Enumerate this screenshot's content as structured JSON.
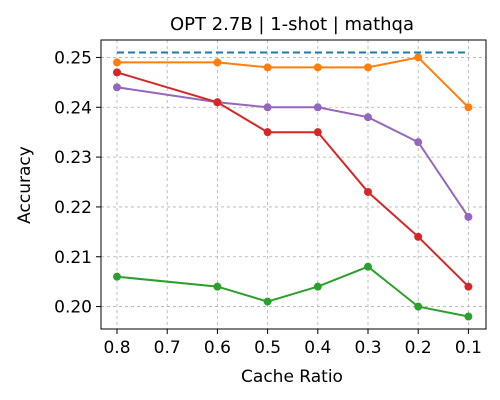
{
  "chart_data": {
    "type": "line",
    "title": "OPT 2.7B | 1-shot | mathqa",
    "xlabel": "Cache Ratio",
    "ylabel": "Accuracy",
    "x_ticks": [
      "0.8",
      "0.7",
      "0.6",
      "0.5",
      "0.4",
      "0.3",
      "0.2",
      "0.1"
    ],
    "y_ticks": [
      "0.20",
      "0.21",
      "0.22",
      "0.23",
      "0.24",
      "0.25"
    ],
    "x_reversed": true,
    "xlim": [
      0.8,
      0.1
    ],
    "ylim": [
      0.1955,
      0.2535
    ],
    "grid": true,
    "baseline": {
      "value": 0.251,
      "color": "#1f77b4",
      "style": "dashed"
    },
    "series": [
      {
        "color": "#ff7f0e",
        "x": [
          0.8,
          0.6,
          0.5,
          0.4,
          0.3,
          0.2,
          0.1
        ],
        "y": [
          0.249,
          0.249,
          0.248,
          0.248,
          0.248,
          0.25,
          0.24
        ]
      },
      {
        "color": "#9467bd",
        "x": [
          0.8,
          0.6,
          0.5,
          0.4,
          0.3,
          0.2,
          0.1
        ],
        "y": [
          0.244,
          0.241,
          0.24,
          0.24,
          0.238,
          0.233,
          0.218
        ]
      },
      {
        "color": "#d62728",
        "x": [
          0.8,
          0.6,
          0.5,
          0.4,
          0.3,
          0.2,
          0.1
        ],
        "y": [
          0.247,
          0.241,
          0.235,
          0.235,
          0.223,
          0.214,
          0.204
        ]
      },
      {
        "color": "#2ca02c",
        "x": [
          0.8,
          0.6,
          0.5,
          0.4,
          0.3,
          0.2,
          0.1
        ],
        "y": [
          0.206,
          0.204,
          0.201,
          0.204,
          0.208,
          0.2,
          0.198
        ]
      }
    ]
  }
}
